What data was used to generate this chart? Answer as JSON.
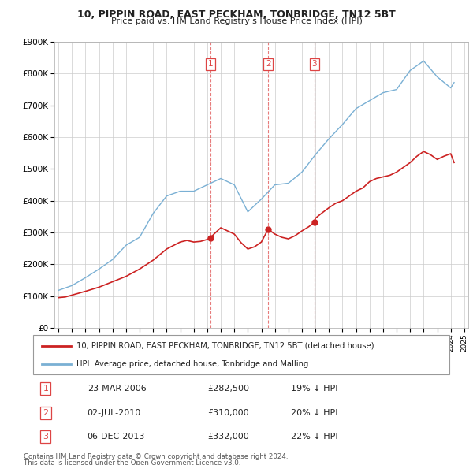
{
  "title": "10, PIPPIN ROAD, EAST PECKHAM, TONBRIDGE, TN12 5BT",
  "subtitle": "Price paid vs. HM Land Registry's House Price Index (HPI)",
  "legend_line1": "10, PIPPIN ROAD, EAST PECKHAM, TONBRIDGE, TN12 5BT (detached house)",
  "legend_line2": "HPI: Average price, detached house, Tonbridge and Malling",
  "footer1": "Contains HM Land Registry data © Crown copyright and database right 2024.",
  "footer2": "This data is licensed under the Open Government Licence v3.0.",
  "transactions": [
    {
      "num": 1,
      "date": "23-MAR-2006",
      "price": "£282,500",
      "pct": "19% ↓ HPI",
      "x_year": 2006.22,
      "y_val": 282500
    },
    {
      "num": 2,
      "date": "02-JUL-2010",
      "price": "£310,000",
      "pct": "20% ↓ HPI",
      "x_year": 2010.5,
      "y_val": 310000
    },
    {
      "num": 3,
      "date": "06-DEC-2013",
      "price": "£332,000",
      "pct": "22% ↓ HPI",
      "x_year": 2013.92,
      "y_val": 332000
    }
  ],
  "hpi_color": "#7ab0d4",
  "price_color": "#cc2222",
  "marker_color": "#cc2222",
  "vline_color": "#dd4444",
  "background_color": "#ffffff",
  "grid_color": "#cccccc",
  "ylim": [
    0,
    900000
  ],
  "xlim_start": 1994.7,
  "xlim_end": 2025.3,
  "hpi_data_years": [
    1995,
    1996,
    1997,
    1998,
    1999,
    2000,
    2001,
    2002,
    2003,
    2004,
    2005,
    2006,
    2007,
    2008,
    2009,
    2010,
    2011,
    2012,
    2013,
    2014,
    2015,
    2016,
    2017,
    2018,
    2019,
    2020,
    2021,
    2022,
    2023,
    2024,
    2024.25
  ],
  "hpi_data_values": [
    118000,
    133000,
    158000,
    185000,
    215000,
    260000,
    285000,
    360000,
    415000,
    430000,
    430000,
    450000,
    470000,
    450000,
    365000,
    405000,
    450000,
    455000,
    490000,
    545000,
    595000,
    640000,
    690000,
    715000,
    740000,
    750000,
    810000,
    840000,
    790000,
    755000,
    772000
  ],
  "price_data_years": [
    1995,
    1995.5,
    1996,
    1997,
    1998,
    1999,
    2000,
    2001,
    2002,
    2003,
    2004,
    2004.5,
    2005,
    2005.5,
    2006,
    2006.22,
    2006.5,
    2007,
    2007.5,
    2008,
    2008.5,
    2009,
    2009.5,
    2010,
    2010.5,
    2011,
    2011.5,
    2012,
    2012.5,
    2013,
    2013.5,
    2013.92,
    2014,
    2014.5,
    2015,
    2015.5,
    2016,
    2016.5,
    2017,
    2017.5,
    2018,
    2018.5,
    2019,
    2019.5,
    2020,
    2020.5,
    2021,
    2021.5,
    2022,
    2022.5,
    2023,
    2023.5,
    2024,
    2024.25
  ],
  "price_data_values": [
    95000,
    97000,
    103000,
    115000,
    128000,
    145000,
    162000,
    185000,
    213000,
    248000,
    270000,
    275000,
    270000,
    272000,
    278000,
    282500,
    295000,
    315000,
    305000,
    295000,
    268000,
    248000,
    255000,
    270000,
    310000,
    295000,
    285000,
    280000,
    290000,
    305000,
    318000,
    332000,
    345000,
    362000,
    378000,
    392000,
    400000,
    415000,
    430000,
    440000,
    460000,
    470000,
    475000,
    480000,
    490000,
    505000,
    520000,
    540000,
    555000,
    545000,
    530000,
    540000,
    548000,
    520000
  ]
}
